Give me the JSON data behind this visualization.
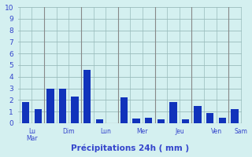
{
  "values": [
    1.8,
    1.2,
    3.0,
    3.0,
    2.3,
    4.6,
    0.3,
    0.0,
    2.2,
    0.4,
    0.5,
    0.3,
    1.8,
    0.3,
    1.5,
    0.9,
    0.5,
    1.2
  ],
  "bar_color": "#1133bb",
  "background_color": "#d4f0f0",
  "grid_color": "#99bbbb",
  "xlabel": "Précipitations 24h ( mm )",
  "xlabel_color": "#3344cc",
  "tick_color": "#3344cc",
  "ylim": [
    0,
    10
  ],
  "yticks": [
    0,
    1,
    2,
    3,
    4,
    5,
    6,
    7,
    8,
    9,
    10
  ],
  "group_centers": [
    0.5,
    3.5,
    6.5,
    9.5,
    12.5,
    15.5,
    17.5
  ],
  "group_names": [
    "Lu\nMar",
    "Dim",
    "Lun",
    "Mer",
    "Jeu",
    "Ven",
    "Sam"
  ],
  "separator_positions": [
    1.5,
    4.5,
    7.5,
    10.5,
    13.5,
    16.5
  ]
}
